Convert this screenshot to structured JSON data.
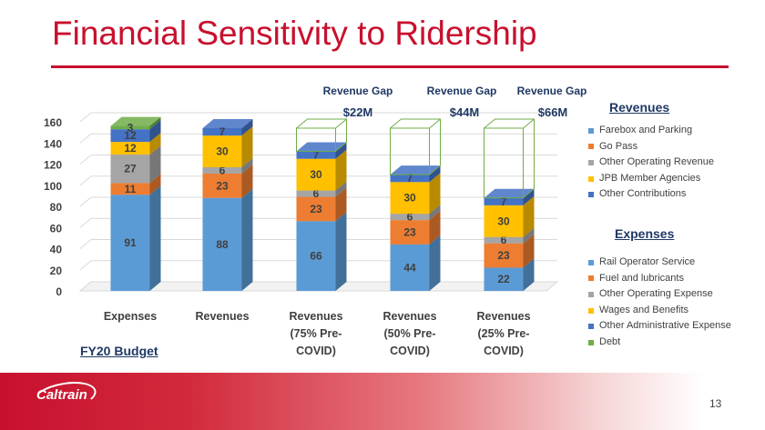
{
  "slide": {
    "title": "Financial Sensitivity to Ridership",
    "budget_label": "FY20 Budget",
    "page_number": "13",
    "logo_text": "Caltrain"
  },
  "legends": {
    "revenues": {
      "title": "Revenues",
      "items": [
        {
          "label": "Farebox and Parking",
          "color": "#5b9bd5"
        },
        {
          "label": "Go Pass",
          "color": "#ed7d31"
        },
        {
          "label": "Other Operating Revenue",
          "color": "#a5a5a5"
        },
        {
          "label": "JPB Member Agencies",
          "color": "#ffc000"
        },
        {
          "label": "Other Contributions",
          "color": "#4472c4"
        }
      ]
    },
    "expenses": {
      "title": "Expenses",
      "items": [
        {
          "label": "Rail Operator Service",
          "color": "#5b9bd5"
        },
        {
          "label": "Fuel and lubricants",
          "color": "#ed7d31"
        },
        {
          "label": "Other Operating Expense",
          "color": "#a5a5a5"
        },
        {
          "label": "Wages and Benefits",
          "color": "#ffc000"
        },
        {
          "label": "Other Administrative Expense",
          "color": "#4472c4"
        },
        {
          "label": "Debt",
          "color": "#70ad47"
        }
      ]
    }
  },
  "chart_data": {
    "type": "bar",
    "stacked": true,
    "y_ticks": [
      0,
      20,
      40,
      60,
      80,
      100,
      120,
      140,
      160
    ],
    "ylim": [
      0,
      160
    ],
    "grid": true,
    "categories": [
      [
        "Expenses"
      ],
      [
        "Revenues"
      ],
      [
        "Revenues",
        "(75% Pre-",
        "COVID)"
      ],
      [
        "Revenues",
        "(50% Pre-",
        "COVID)"
      ],
      [
        "Revenues",
        "(25% Pre-",
        "COVID)"
      ]
    ],
    "stacks": [
      [
        {
          "value": 91,
          "color": "#5b9bd5"
        },
        {
          "value": 11,
          "color": "#ed7d31"
        },
        {
          "value": 27,
          "color": "#a5a5a5"
        },
        {
          "value": 12,
          "color": "#ffc000"
        },
        {
          "value": 12,
          "color": "#4472c4"
        },
        {
          "value": 3,
          "color": "#70ad47"
        }
      ],
      [
        {
          "value": 88,
          "color": "#5b9bd5"
        },
        {
          "value": 23,
          "color": "#ed7d31"
        },
        {
          "value": 6,
          "color": "#a5a5a5"
        },
        {
          "value": 30,
          "color": "#ffc000"
        },
        {
          "value": 7,
          "color": "#4472c4"
        }
      ],
      [
        {
          "value": 66,
          "color": "#5b9bd5"
        },
        {
          "value": 23,
          "color": "#ed7d31"
        },
        {
          "value": 6,
          "color": "#a5a5a5"
        },
        {
          "value": 30,
          "color": "#ffc000"
        },
        {
          "value": 7,
          "color": "#4472c4"
        }
      ],
      [
        {
          "value": 44,
          "color": "#5b9bd5"
        },
        {
          "value": 23,
          "color": "#ed7d31"
        },
        {
          "value": 6,
          "color": "#a5a5a5"
        },
        {
          "value": 30,
          "color": "#ffc000"
        },
        {
          "value": 7,
          "color": "#4472c4"
        }
      ],
      [
        {
          "value": 22,
          "color": "#5b9bd5"
        },
        {
          "value": 23,
          "color": "#ed7d31"
        },
        {
          "value": 6,
          "color": "#a5a5a5"
        },
        {
          "value": 30,
          "color": "#ffc000"
        },
        {
          "value": 7,
          "color": "#4472c4"
        }
      ]
    ],
    "revenue_gaps": [
      {
        "bar_index": 2,
        "title": "Revenue Gap",
        "amount": "$22M",
        "gap_value": 22
      },
      {
        "bar_index": 3,
        "title": "Revenue Gap",
        "amount": "$44M",
        "gap_value": 44
      },
      {
        "bar_index": 4,
        "title": "Revenue Gap",
        "amount": "$66M",
        "gap_value": 66
      }
    ],
    "gap_outline_color": "#70ad47"
  }
}
